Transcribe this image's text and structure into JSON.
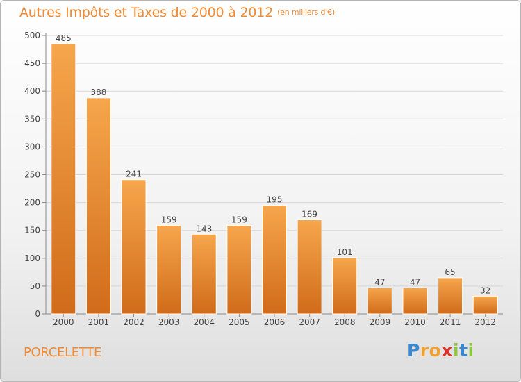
{
  "header": {
    "title": "Autres Impôts et Taxes de 2000 à 2012",
    "unit": "(en milliers d'€)"
  },
  "footer": {
    "town": "PORCELETTE",
    "logo_letters": [
      "P",
      "r",
      "o",
      "x",
      "i",
      "t",
      "i"
    ]
  },
  "colors": {
    "accent": "#f08a33",
    "bar_light": "#f6a64c",
    "bar_dark": "#d06b1a"
  },
  "chart_data": {
    "type": "bar",
    "title": "Autres Impôts et Taxes de 2000 à 2012",
    "xlabel": "",
    "ylabel": "",
    "categories": [
      "2000",
      "2001",
      "2002",
      "2003",
      "2004",
      "2005",
      "2006",
      "2007",
      "2008",
      "2009",
      "2010",
      "2011",
      "2012"
    ],
    "values": [
      485,
      388,
      241,
      159,
      143,
      159,
      195,
      169,
      101,
      47,
      47,
      65,
      32
    ],
    "ylim": [
      0,
      500
    ],
    "yticks": [
      0,
      50,
      100,
      150,
      200,
      250,
      300,
      350,
      400,
      450,
      500
    ],
    "grid": true,
    "data_labels": true
  }
}
